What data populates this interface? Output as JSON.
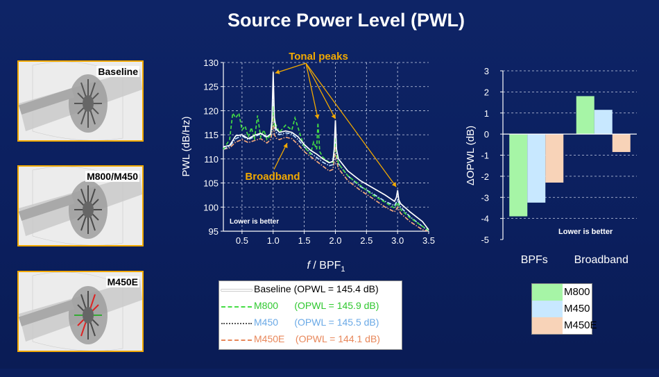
{
  "slide": {
    "title": "Source Power Level (PWL)",
    "background": "#0b1f5e",
    "accent": "#f2a900"
  },
  "thumbnails": [
    {
      "label": "Baseline"
    },
    {
      "label": "M800/M450"
    },
    {
      "label": "M450E"
    }
  ],
  "chart_data": [
    {
      "type": "line",
      "title": "",
      "xlabel_italic": "f",
      "xlabel_rest": " / BPF",
      "xlabel_sub": "1",
      "ylabel": "PWL (dB/Hz)",
      "xlim": [
        0.2,
        3.5
      ],
      "ylim": [
        95,
        130
      ],
      "xticks": [
        "0.5",
        "1.0",
        "1.5",
        "2.0",
        "2.5",
        "3.0",
        "3.5"
      ],
      "xtick_values": [
        0.5,
        1.0,
        1.5,
        2.0,
        2.5,
        3.0,
        3.5
      ],
      "yticks": [
        "95",
        "100",
        "105",
        "110",
        "115",
        "120",
        "125",
        "130"
      ],
      "ytick_values": [
        95,
        100,
        105,
        110,
        115,
        120,
        125,
        130
      ],
      "grid": true,
      "annotations": {
        "tonal_peaks": "Tonal peaks",
        "broadband": "Broadband",
        "lower_is_better": "Lower is better"
      },
      "series": [
        {
          "name": "Baseline",
          "opwl": "(OPWL = 145.4 dB)",
          "color": "#ffffff",
          "dash": "solid",
          "x": [
            0.2,
            0.3,
            0.4,
            0.5,
            0.6,
            0.7,
            0.8,
            0.9,
            0.96,
            0.98,
            1.0,
            1.02,
            1.05,
            1.1,
            1.2,
            1.3,
            1.4,
            1.5,
            1.6,
            1.7,
            1.8,
            1.9,
            1.96,
            1.98,
            2.0,
            2.02,
            2.05,
            2.2,
            2.4,
            2.6,
            2.8,
            2.95,
            2.98,
            3.0,
            3.02,
            3.05,
            3.2,
            3.4,
            3.5
          ],
          "y": [
            112.5,
            112.8,
            114.8,
            115.0,
            114.2,
            114.9,
            115.3,
            114.6,
            115.2,
            118.0,
            128.0,
            118.5,
            116.2,
            115.5,
            115.8,
            115.5,
            114.6,
            113.0,
            111.8,
            111.0,
            110.0,
            109.2,
            109.5,
            112.0,
            118.0,
            112.0,
            110.0,
            107.5,
            105.5,
            104.0,
            102.5,
            101.2,
            102.0,
            103.5,
            101.5,
            100.7,
            99.0,
            97.0,
            95.3
          ]
        },
        {
          "name": "M800",
          "opwl": "(OPWL = 145.9 dB)",
          "color": "#44dd44",
          "dash": "dashed",
          "x": [
            0.2,
            0.3,
            0.35,
            0.4,
            0.45,
            0.5,
            0.55,
            0.6,
            0.65,
            0.7,
            0.75,
            0.8,
            0.85,
            0.9,
            0.96,
            0.98,
            1.0,
            1.02,
            1.05,
            1.1,
            1.2,
            1.3,
            1.35,
            1.4,
            1.5,
            1.6,
            1.65,
            1.7,
            1.72,
            1.75,
            1.8,
            1.9,
            1.96,
            1.98,
            2.0,
            2.02,
            2.05,
            2.2,
            2.4,
            2.6,
            2.8,
            2.95,
            3.0,
            3.05,
            3.2,
            3.4,
            3.5
          ],
          "y": [
            112.0,
            114.0,
            119.5,
            118.5,
            119.5,
            116.0,
            116.8,
            114.5,
            116.5,
            114.0,
            119.0,
            114.5,
            116.0,
            114.0,
            115.0,
            117.0,
            121.0,
            116.5,
            117.0,
            115.5,
            117.0,
            116.0,
            118.5,
            116.5,
            112.5,
            111.0,
            113.5,
            112.0,
            117.5,
            111.5,
            110.3,
            109.3,
            109.3,
            111.5,
            114.5,
            111.0,
            109.0,
            106.5,
            104.5,
            102.5,
            101.0,
            99.8,
            101.0,
            99.5,
            97.8,
            96.0,
            95.2
          ]
        },
        {
          "name": "M450",
          "opwl": "(OPWL = 145.5 dB)",
          "color": "#bfe3ff",
          "dash": "dashdot",
          "x": [
            0.2,
            0.3,
            0.4,
            0.5,
            0.6,
            0.7,
            0.8,
            0.9,
            0.96,
            0.98,
            1.0,
            1.02,
            1.05,
            1.1,
            1.2,
            1.3,
            1.4,
            1.5,
            1.6,
            1.7,
            1.8,
            1.9,
            1.96,
            1.98,
            2.0,
            2.02,
            2.05,
            2.2,
            2.4,
            2.6,
            2.8,
            2.95,
            3.0,
            3.05,
            3.2,
            3.4,
            3.5
          ],
          "y": [
            112.0,
            112.6,
            114.2,
            114.8,
            114.0,
            114.6,
            115.2,
            114.4,
            115.0,
            117.0,
            124.0,
            117.0,
            115.5,
            115.0,
            115.4,
            115.2,
            114.0,
            112.5,
            111.2,
            110.3,
            109.3,
            108.6,
            108.8,
            111.0,
            116.0,
            111.0,
            109.0,
            106.5,
            104.3,
            102.8,
            101.2,
            100.3,
            101.5,
            100.0,
            98.0,
            96.0,
            95.0
          ]
        },
        {
          "name": "M450E",
          "opwl": "(OPWL = 144.1 dB)",
          "color": "#f4a87c",
          "dash": "dashdot",
          "x": [
            0.2,
            0.3,
            0.4,
            0.5,
            0.6,
            0.7,
            0.8,
            0.9,
            0.96,
            0.98,
            1.0,
            1.02,
            1.05,
            1.1,
            1.2,
            1.3,
            1.4,
            1.5,
            1.6,
            1.7,
            1.8,
            1.9,
            1.96,
            1.98,
            2.0,
            2.02,
            2.05,
            2.2,
            2.4,
            2.6,
            2.8,
            2.95,
            3.0,
            3.05,
            3.2,
            3.4,
            3.5
          ],
          "y": [
            112.0,
            112.3,
            113.5,
            114.0,
            113.4,
            113.8,
            114.2,
            113.3,
            114.0,
            115.5,
            119.0,
            115.0,
            114.3,
            114.0,
            114.5,
            114.2,
            113.0,
            111.5,
            110.5,
            109.5,
            108.5,
            107.5,
            107.8,
            109.5,
            113.0,
            109.5,
            108.0,
            105.5,
            103.5,
            101.8,
            100.0,
            99.0,
            100.0,
            98.7,
            97.0,
            95.3,
            95.0
          ]
        }
      ]
    },
    {
      "type": "bar",
      "title": "",
      "ylabel": "ΔOPWL (dB)",
      "categories": [
        "BPFs",
        "Broadband"
      ],
      "ylim": [
        -5,
        3
      ],
      "yticks": [
        "3",
        "2",
        "1",
        "0",
        "-1",
        "-2",
        "-3",
        "-4",
        "-5"
      ],
      "ytick_values": [
        3,
        2,
        1,
        0,
        -1,
        -2,
        -3,
        -4,
        -5
      ],
      "grid": true,
      "legend_position": "below",
      "annotation": "Lower is better",
      "series": [
        {
          "name": "M800",
          "color": "#a6f5a6",
          "values": [
            -3.9,
            1.8
          ]
        },
        {
          "name": "M450",
          "color": "#c8e8ff",
          "values": [
            -3.25,
            1.15
          ]
        },
        {
          "name": "M450E",
          "color": "#f8d3b8",
          "values": [
            -2.3,
            -0.85
          ]
        }
      ]
    }
  ]
}
